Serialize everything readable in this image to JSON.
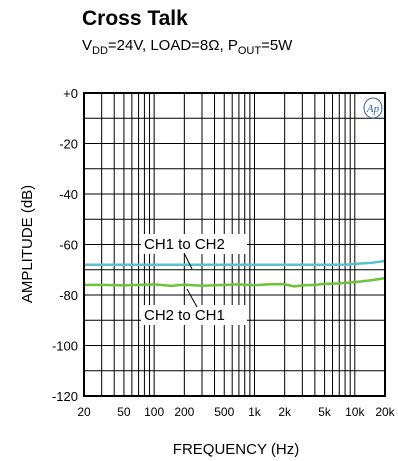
{
  "chart_data": {
    "type": "line",
    "title": "Cross Talk",
    "subtitle": {
      "vdd_prefix": "V",
      "vdd_sub": "DD",
      "vdd_value": "=24V, LOAD=8Ω, ",
      "pout_prefix": "P",
      "pout_sub": "OUT",
      "pout_value": "=5W"
    },
    "xlabel": "FREQUENCY (Hz)",
    "ylabel": "AMPLITUDE (dB)",
    "x_scale": "log",
    "xlim": [
      20,
      20000
    ],
    "ylim": [
      -120,
      0
    ],
    "grid": true,
    "x_ticks": [
      20,
      50,
      100,
      200,
      500,
      1000,
      2000,
      5000,
      10000,
      20000
    ],
    "x_tick_labels": [
      "20",
      "50",
      "100",
      "200",
      "500",
      "1k",
      "2k",
      "5k",
      "10k",
      "20k"
    ],
    "y_ticks": [
      0,
      -20,
      -40,
      -60,
      -80,
      -100,
      -120
    ],
    "y_tick_labels": [
      "+0",
      "-20",
      "-40",
      "-60",
      "-80",
      "-100",
      "-120"
    ],
    "series": [
      {
        "name": "CH1 to CH2",
        "color": "#5bc2cc",
        "x": [
          20,
          50,
          100,
          200,
          500,
          1000,
          2000,
          5000,
          8000,
          10000,
          15000,
          20000
        ],
        "y": [
          -68,
          -68,
          -68,
          -68,
          -68,
          -68,
          -68,
          -68,
          -68,
          -67.7,
          -67.2,
          -66.5
        ]
      },
      {
        "name": "CH2 to CH1",
        "color": "#6cc43a",
        "x": [
          20,
          30,
          50,
          70,
          100,
          150,
          200,
          300,
          500,
          700,
          1000,
          1500,
          2000,
          2500,
          3000,
          4000,
          5000,
          7000,
          10000,
          15000,
          20000
        ],
        "y": [
          -76,
          -76,
          -76.2,
          -76,
          -75.8,
          -76.4,
          -75.9,
          -76.3,
          -76.0,
          -75.8,
          -76.1,
          -75.7,
          -75.8,
          -76.6,
          -76.2,
          -76.0,
          -75.6,
          -75.4,
          -74.9,
          -74.1,
          -73.3
        ]
      }
    ],
    "annotations": [
      "CH1 to CH2",
      "CH2 to CH1"
    ],
    "logo_text": "Ap"
  }
}
